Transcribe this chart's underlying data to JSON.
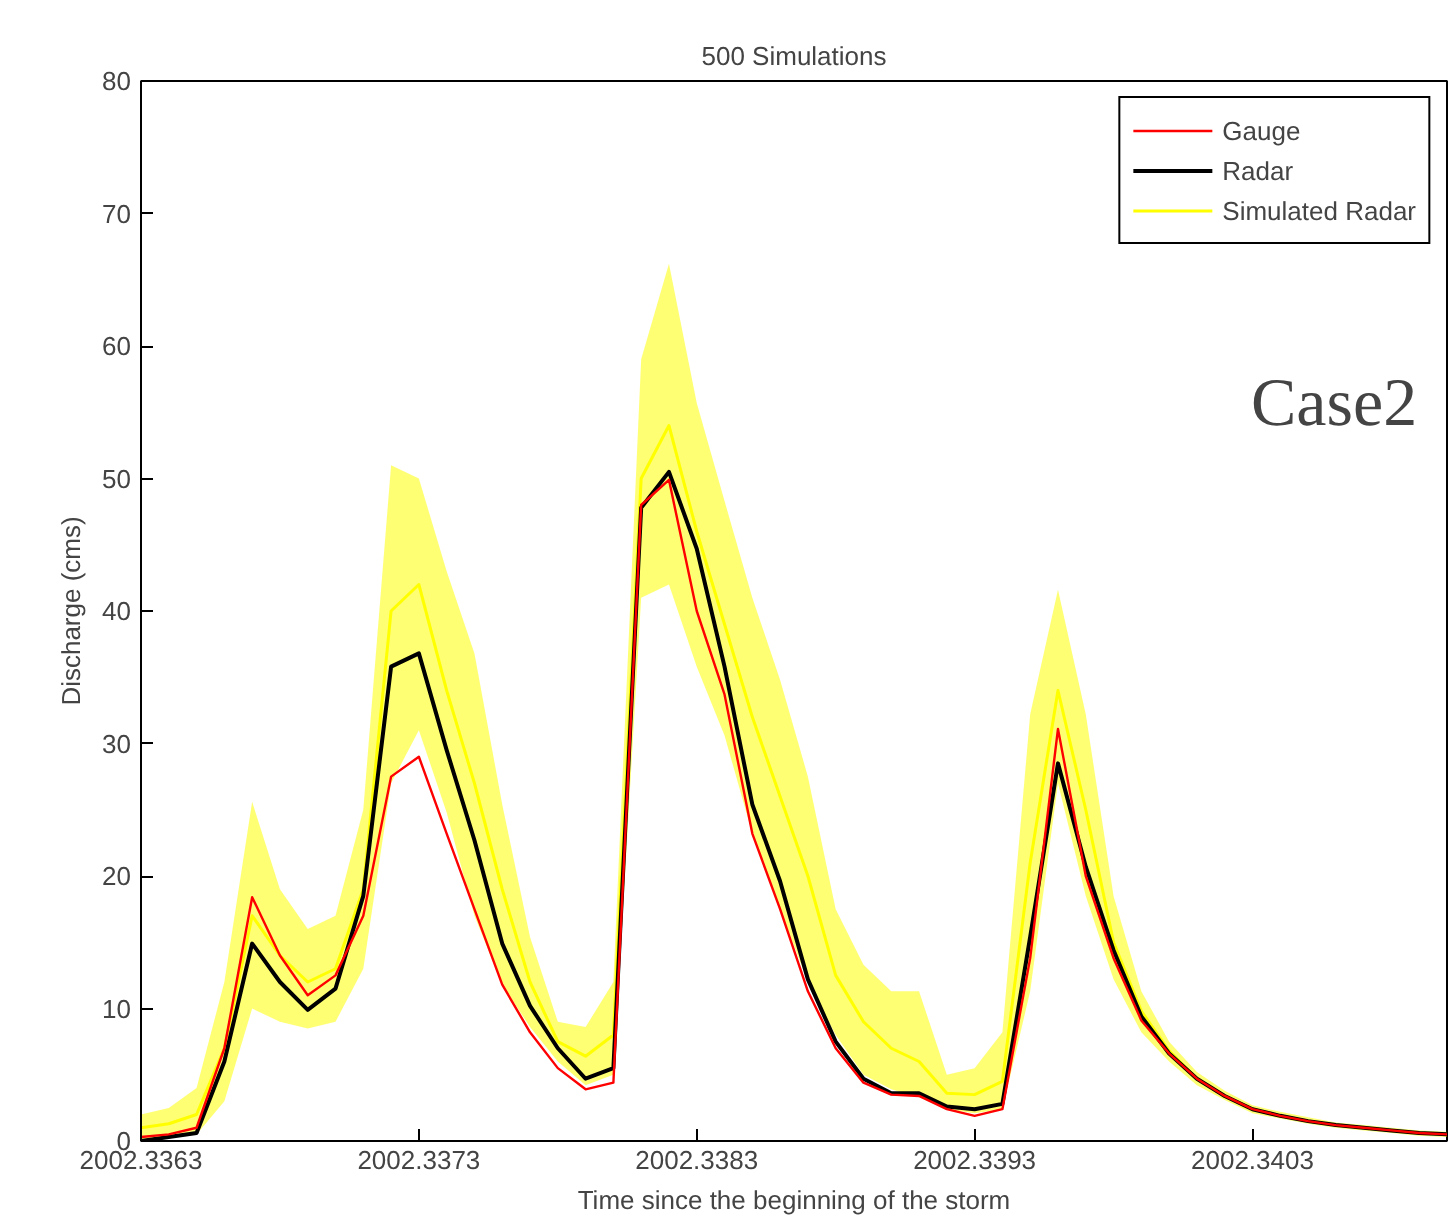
{
  "chart_data": {
    "type": "line",
    "title": "500 Simulations",
    "xlabel": "Time since the beginning of the storm",
    "ylabel": "Discharge (cms)",
    "annotations": [
      "Case2"
    ],
    "x": [
      2002.3363,
      2002.3364,
      2002.3365,
      2002.3366,
      2002.3367,
      2002.3368,
      2002.3369,
      2002.337,
      2002.3371,
      2002.3372,
      2002.3373,
      2002.3374,
      2002.3375,
      2002.3376,
      2002.3377,
      2002.3378,
      2002.3379,
      2002.338,
      2002.3381,
      2002.3382,
      2002.3383,
      2002.3384,
      2002.3385,
      2002.3386,
      2002.3387,
      2002.3388,
      2002.3389,
      2002.339,
      2002.3391,
      2002.3392,
      2002.3393,
      2002.3394,
      2002.3395,
      2002.3396,
      2002.3397,
      2002.3398,
      2002.3399,
      2002.34,
      2002.3401,
      2002.3402,
      2002.3403,
      2002.3404,
      2002.3405,
      2002.3406,
      2002.3407,
      2002.3408,
      2002.3409,
      2002.341
    ],
    "series": [
      {
        "name": "Simulated Radar",
        "color": "#ffff00",
        "values": [
          1,
          1.3,
          2,
          7,
          17,
          14,
          12,
          13,
          19,
          40,
          42,
          34,
          27,
          19,
          12,
          7.5,
          6.4,
          8,
          50,
          54,
          46,
          39,
          32,
          26,
          20,
          12.5,
          9,
          7,
          6,
          3.6,
          3.5,
          4.5,
          21,
          34,
          25,
          15,
          9.8,
          6.8,
          4.7,
          3.4,
          2.4,
          1.9,
          1.5,
          1.2,
          1,
          0.8,
          0.6,
          0.5
        ],
        "lower": [
          0,
          0.3,
          0.5,
          3,
          10,
          9,
          8.5,
          9,
          13,
          27,
          31,
          24.8,
          17,
          11.8,
          8.6,
          6,
          4.2,
          5,
          41,
          42,
          35.8,
          30.6,
          23.2,
          17.5,
          12,
          8,
          5,
          3.9,
          3.3,
          2.4,
          2.1,
          2.4,
          11.3,
          27,
          18.5,
          12.2,
          8.2,
          6,
          4.2,
          3.1,
          2.1,
          1.7,
          1.3,
          1,
          0.8,
          0.6,
          0.4,
          0.3
        ],
        "upper": [
          2,
          2.5,
          4,
          12,
          25.6,
          19,
          16,
          17,
          25,
          51,
          50,
          43,
          36.8,
          25.4,
          15.4,
          9,
          8.6,
          12,
          59,
          66.2,
          55.7,
          48.3,
          41,
          34.8,
          27.5,
          17.5,
          13.3,
          11.3,
          11.3,
          5,
          5.5,
          8.2,
          32.2,
          41.6,
          32.2,
          18.5,
          11.3,
          7.5,
          5.2,
          3.8,
          2.7,
          2.2,
          1.8,
          1.4,
          1.2,
          1,
          0.8,
          0.7
        ]
      },
      {
        "name": "Gauge",
        "color": "#ff0000",
        "values": [
          0.3,
          0.5,
          1,
          7,
          18.4,
          14,
          11,
          12.5,
          17,
          27.5,
          29,
          23.2,
          17.5,
          11.8,
          8.2,
          5.5,
          3.9,
          4.4,
          48,
          49.9,
          40,
          33.7,
          23.2,
          17.5,
          11.3,
          7,
          4.4,
          3.5,
          3.4,
          2.4,
          1.9,
          2.4,
          13.8,
          31.1,
          20,
          13.8,
          9.1,
          6.6,
          4.7,
          3.4,
          2.4,
          1.9,
          1.5,
          1.2,
          1,
          0.8,
          0.6,
          0.5
        ]
      },
      {
        "name": "Radar",
        "color": "#000000",
        "values": [
          0,
          0.3,
          0.6,
          6,
          14.9,
          12,
          9.9,
          11.5,
          18.5,
          35.8,
          36.8,
          29.5,
          22.7,
          14.9,
          10.2,
          7,
          4.7,
          5.5,
          47.8,
          50.5,
          44.7,
          35.8,
          25.4,
          19.6,
          12.2,
          7.5,
          4.7,
          3.6,
          3.6,
          2.6,
          2.4,
          2.8,
          15.4,
          28.5,
          20.7,
          14.4,
          9.4,
          6.6,
          4.7,
          3.4,
          2.4,
          1.9,
          1.5,
          1.2,
          1,
          0.8,
          0.6,
          0.5
        ]
      }
    ],
    "xlim": [
      2002.3363,
      2002.341
    ],
    "ylim": [
      0,
      80
    ],
    "xticks": [
      2002.3363,
      2002.3373,
      2002.3383,
      2002.3393,
      2002.3403
    ],
    "yticks": [
      0,
      10,
      20,
      30,
      40,
      50,
      60,
      70,
      80
    ],
    "grid": false,
    "legend": "top right",
    "line_style": "solid"
  }
}
